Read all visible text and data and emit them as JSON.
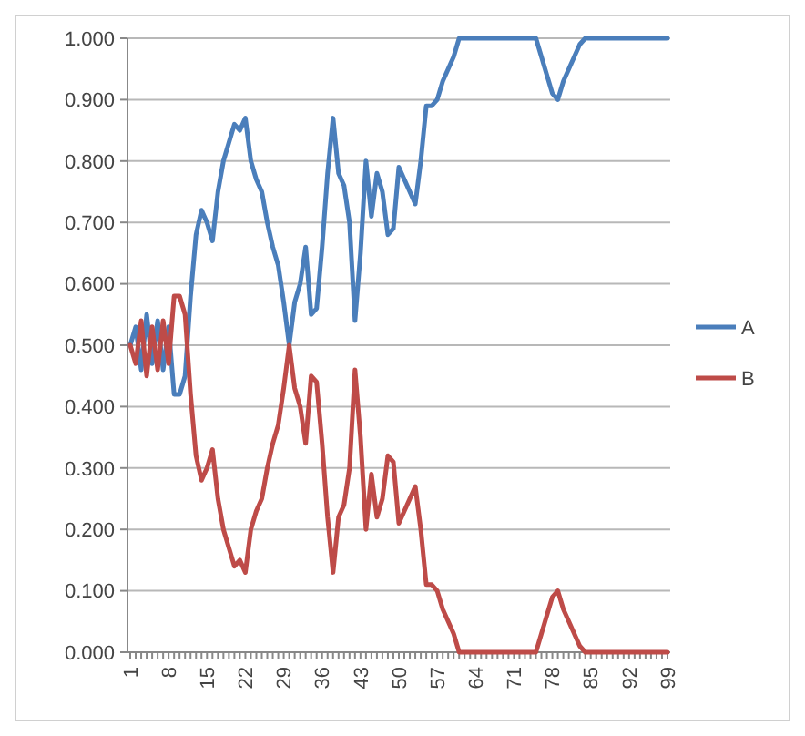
{
  "chart_data": {
    "type": "line",
    "x": [
      1,
      2,
      3,
      4,
      5,
      6,
      7,
      8,
      9,
      10,
      11,
      12,
      13,
      14,
      15,
      16,
      17,
      18,
      19,
      20,
      21,
      22,
      23,
      24,
      25,
      26,
      27,
      28,
      29,
      30,
      31,
      32,
      33,
      34,
      35,
      36,
      37,
      38,
      39,
      40,
      41,
      42,
      43,
      44,
      45,
      46,
      47,
      48,
      49,
      50,
      51,
      52,
      53,
      54,
      55,
      56,
      57,
      58,
      59,
      60,
      61,
      62,
      63,
      64,
      65,
      66,
      67,
      68,
      69,
      70,
      71,
      72,
      73,
      74,
      75,
      76,
      77,
      78,
      79,
      80,
      81,
      82,
      83,
      84,
      85,
      86,
      87,
      88,
      89,
      90,
      91,
      92,
      93,
      94,
      95,
      96,
      97,
      98,
      99
    ],
    "series": [
      {
        "name": "A",
        "color": "#4a7ebb",
        "values": [
          0.5,
          0.53,
          0.46,
          0.55,
          0.47,
          0.54,
          0.46,
          0.53,
          0.42,
          0.42,
          0.45,
          0.58,
          0.68,
          0.72,
          0.7,
          0.67,
          0.75,
          0.8,
          0.83,
          0.86,
          0.85,
          0.87,
          0.8,
          0.77,
          0.75,
          0.7,
          0.66,
          0.63,
          0.57,
          0.5,
          0.57,
          0.6,
          0.66,
          0.55,
          0.56,
          0.66,
          0.78,
          0.87,
          0.78,
          0.76,
          0.7,
          0.54,
          0.65,
          0.8,
          0.71,
          0.78,
          0.75,
          0.68,
          0.69,
          0.79,
          0.77,
          0.75,
          0.73,
          0.8,
          0.89,
          0.89,
          0.9,
          0.93,
          0.95,
          0.97,
          1,
          1,
          1,
          1,
          1,
          1,
          1,
          1,
          1,
          1,
          1,
          1,
          1,
          1,
          1,
          0.97,
          0.94,
          0.91,
          0.9,
          0.93,
          0.95,
          0.97,
          0.99,
          1,
          1,
          1,
          1,
          1,
          1,
          1,
          1,
          1,
          1,
          1,
          1,
          1,
          1,
          1,
          1
        ]
      },
      {
        "name": "B",
        "color": "#be4b48",
        "values": [
          0.5,
          0.47,
          0.54,
          0.45,
          0.53,
          0.46,
          0.54,
          0.47,
          0.58,
          0.58,
          0.55,
          0.42,
          0.32,
          0.28,
          0.3,
          0.33,
          0.25,
          0.2,
          0.17,
          0.14,
          0.15,
          0.13,
          0.2,
          0.23,
          0.25,
          0.3,
          0.34,
          0.37,
          0.43,
          0.5,
          0.43,
          0.4,
          0.34,
          0.45,
          0.44,
          0.34,
          0.22,
          0.13,
          0.22,
          0.24,
          0.3,
          0.46,
          0.35,
          0.2,
          0.29,
          0.22,
          0.25,
          0.32,
          0.31,
          0.21,
          0.23,
          0.25,
          0.27,
          0.2,
          0.11,
          0.11,
          0.1,
          0.07,
          0.05,
          0.03,
          0,
          0,
          0,
          0,
          0,
          0,
          0,
          0,
          0,
          0,
          0,
          0,
          0,
          0,
          0,
          0.03,
          0.06,
          0.09,
          0.1,
          0.07,
          0.05,
          0.03,
          0.01,
          0,
          0,
          0,
          0,
          0,
          0,
          0,
          0,
          0,
          0,
          0,
          0,
          0,
          0,
          0,
          0
        ]
      }
    ],
    "xlim": [
      0.5,
      99.5
    ],
    "xticks": [
      1,
      8,
      15,
      22,
      29,
      36,
      43,
      50,
      57,
      64,
      71,
      78,
      85,
      92,
      99
    ],
    "ylim": [
      0,
      1
    ],
    "yticks": [
      {
        "value": 0,
        "label": "0.000"
      },
      {
        "value": 0.1,
        "label": "0.100"
      },
      {
        "value": 0.2,
        "label": "0.200"
      },
      {
        "value": 0.3,
        "label": "0.300"
      },
      {
        "value": 0.4,
        "label": "0.400"
      },
      {
        "value": 0.5,
        "label": "0.500"
      },
      {
        "value": 0.6,
        "label": "0.600"
      },
      {
        "value": 0.7,
        "label": "0.700"
      },
      {
        "value": 0.8,
        "label": "0.800"
      },
      {
        "value": 0.9,
        "label": "0.900"
      },
      {
        "value": 1,
        "label": "1.000"
      }
    ],
    "grid": "y",
    "legend": "right",
    "marker": "none",
    "line_style": "solid"
  }
}
